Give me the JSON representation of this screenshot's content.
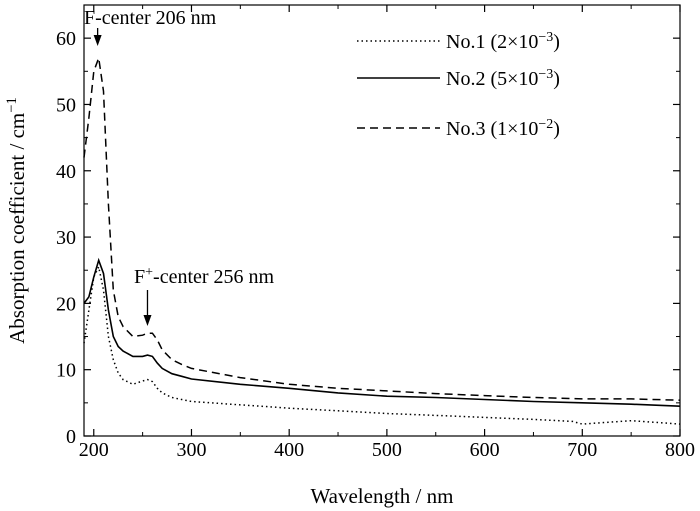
{
  "chart_data": {
    "type": "line",
    "xlabel": "Wavelength / nm",
    "ylabel": "Absorption coefficient / cm⁻¹",
    "xlim": [
      190,
      800
    ],
    "ylim": [
      0,
      65
    ],
    "xticks": [
      200,
      300,
      400,
      500,
      600,
      700,
      800
    ],
    "yticks": [
      0,
      10,
      20,
      30,
      40,
      50,
      60
    ],
    "legend_position": "top-right",
    "series": [
      {
        "name": "No.1 (2×10⁻³)",
        "style": "dotted",
        "x": [
          190,
          195,
          200,
          205,
          210,
          215,
          220,
          225,
          230,
          240,
          250,
          255,
          260,
          265,
          270,
          280,
          290,
          300,
          320,
          340,
          360,
          380,
          400,
          450,
          500,
          550,
          600,
          650,
          690,
          700,
          720,
          750,
          780,
          800
        ],
        "y": [
          14,
          19,
          24,
          25.5,
          22,
          15,
          11.5,
          9.5,
          8.5,
          7.8,
          8.3,
          8.5,
          8.2,
          7.2,
          6.5,
          5.8,
          5.5,
          5.2,
          5.0,
          4.8,
          4.6,
          4.4,
          4.2,
          3.8,
          3.4,
          3.1,
          2.8,
          2.5,
          2.2,
          1.8,
          2.0,
          2.3,
          2.0,
          1.8
        ]
      },
      {
        "name": "No.2 (5×10⁻³)",
        "style": "solid",
        "x": [
          190,
          195,
          200,
          205,
          210,
          215,
          220,
          225,
          230,
          240,
          250,
          255,
          260,
          265,
          270,
          280,
          290,
          300,
          350,
          400,
          450,
          500,
          550,
          600,
          650,
          700,
          750,
          800
        ],
        "y": [
          20,
          21,
          24,
          26.5,
          24.5,
          19,
          15,
          13.5,
          12.8,
          12,
          12,
          12.2,
          12,
          11,
          10.2,
          9.4,
          9.0,
          8.6,
          7.8,
          7.2,
          6.5,
          6.0,
          5.8,
          5.5,
          5.2,
          5.0,
          4.8,
          4.5
        ]
      },
      {
        "name": "No.3 (1×10⁻²)",
        "style": "dashed",
        "x": [
          190,
          195,
          200,
          205,
          210,
          215,
          220,
          225,
          230,
          240,
          250,
          255,
          260,
          265,
          270,
          280,
          290,
          300,
          350,
          400,
          450,
          500,
          550,
          600,
          650,
          700,
          750,
          800
        ],
        "y": [
          42,
          48,
          55,
          57,
          52,
          35,
          22,
          18,
          16.5,
          15,
          15.2,
          15.5,
          15.5,
          14.5,
          13,
          11.5,
          10.8,
          10.2,
          8.8,
          7.8,
          7.2,
          6.8,
          6.4,
          6.1,
          5.8,
          5.6,
          5.6,
          5.4
        ]
      }
    ],
    "annotations": [
      {
        "text": "F-center 206 nm",
        "x": 206,
        "y": 57
      },
      {
        "text": "F⁺-center 256 nm",
        "x": 256,
        "y": 16
      }
    ]
  }
}
